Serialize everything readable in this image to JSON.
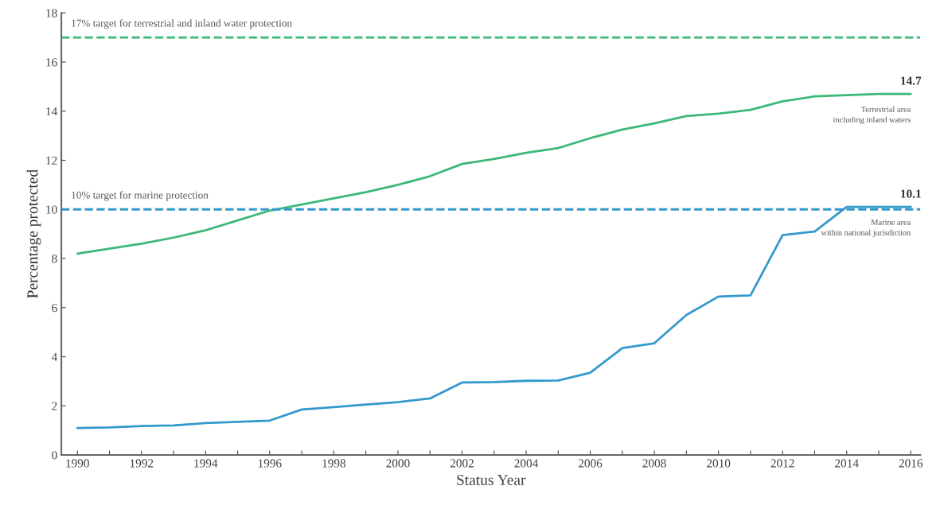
{
  "chart_data": {
    "type": "line",
    "xlabel": "Status Year",
    "ylabel": "Percentage protected",
    "x": [
      1990,
      1991,
      1992,
      1993,
      1994,
      1995,
      1996,
      1997,
      1998,
      1999,
      2000,
      2001,
      2002,
      2003,
      2004,
      2005,
      2006,
      2007,
      2008,
      2009,
      2010,
      2011,
      2012,
      2013,
      2014,
      2015,
      2016
    ],
    "series": [
      {
        "name": "Terrestrial area\nincluding inland waters",
        "color": "#3cb878",
        "values": [
          8.2,
          8.4,
          8.6,
          8.85,
          9.15,
          9.55,
          9.95,
          10.2,
          10.45,
          10.7,
          11.0,
          11.35,
          11.85,
          12.05,
          12.3,
          12.5,
          12.9,
          13.25,
          13.5,
          13.8,
          13.9,
          14.05,
          14.4,
          14.6,
          14.65,
          14.7,
          14.7
        ]
      },
      {
        "name": "Marine area\nwithin national jurisdiction",
        "color": "#3399cc",
        "values": [
          1.1,
          1.12,
          1.18,
          1.2,
          1.3,
          1.35,
          1.4,
          1.85,
          1.95,
          2.05,
          2.15,
          2.3,
          2.95,
          2.97,
          3.02,
          3.03,
          3.35,
          4.35,
          4.55,
          5.7,
          6.45,
          6.5,
          8.95,
          9.1,
          10.1,
          10.1,
          10.1
        ]
      }
    ],
    "ref_lines": [
      {
        "axis": "y",
        "value": 17,
        "label": "17% target for terrestrial and inland water protection",
        "color": "#3cb878",
        "line_style": "dashed"
      },
      {
        "axis": "y",
        "value": 10,
        "label": "10% target for marine protection",
        "color": "#3399cc",
        "line_style": "dashed"
      }
    ],
    "annotations": [
      {
        "text": "14.7",
        "x": 2016,
        "y": 14.7
      },
      {
        "text": "10.1",
        "x": 2016,
        "y": 10.1
      }
    ],
    "xlim": [
      1989.5,
      2016.3
    ],
    "ylim": [
      0,
      18
    ],
    "xticks": [
      1990,
      {
        "value": 1991,
        "label": null
      },
      1992,
      {
        "value": 1993,
        "label": null
      },
      1994,
      {
        "value": 1995,
        "label": null
      },
      1996,
      {
        "value": 1997,
        "label": null
      },
      1998,
      {
        "value": 1999,
        "label": null
      },
      2000,
      {
        "value": 2001,
        "label": null
      },
      2002,
      {
        "value": 2003,
        "label": null
      },
      2004,
      {
        "value": 2005,
        "label": null
      },
      2006,
      {
        "value": 2007,
        "label": null
      },
      2008,
      {
        "value": 2009,
        "label": null
      },
      2010,
      {
        "value": 2011,
        "label": null
      },
      2012,
      {
        "value": 2013,
        "label": null
      },
      2014,
      {
        "value": 2015,
        "label": null
      },
      2016
    ],
    "yticks": [
      0,
      2,
      4,
      6,
      8,
      10,
      12,
      14,
      16,
      18
    ],
    "grid": false,
    "legend": false,
    "marker": "none",
    "line_style": "solid"
  }
}
